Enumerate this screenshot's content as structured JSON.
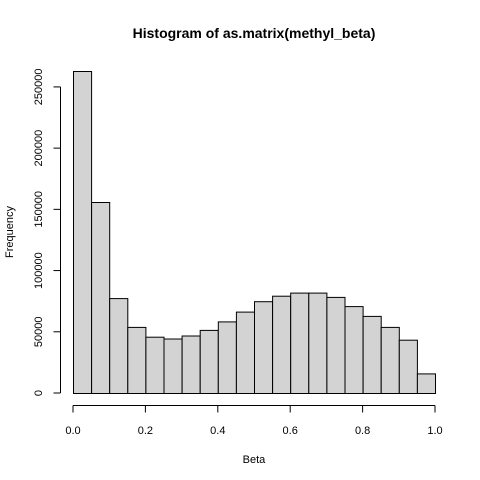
{
  "chart_data": {
    "type": "bar",
    "title": "Histogram of as.matrix(methyl_beta)",
    "xlabel": "Beta",
    "ylabel": "Frequency",
    "bin_edges": [
      0.0,
      0.05,
      0.1,
      0.15,
      0.2,
      0.25,
      0.3,
      0.35,
      0.4,
      0.45,
      0.5,
      0.55,
      0.6,
      0.65,
      0.7,
      0.75,
      0.8,
      0.85,
      0.9,
      0.95,
      1.0
    ],
    "values": [
      263000,
      156000,
      77500,
      54000,
      46000,
      44500,
      47000,
      51500,
      58500,
      66500,
      75000,
      79500,
      82000,
      82000,
      78500,
      71000,
      63000,
      54000,
      43500,
      16000
    ],
    "xlim": [
      0.0,
      1.0
    ],
    "ylim": [
      0,
      263000
    ],
    "x_ticks": [
      0.0,
      0.2,
      0.4,
      0.6,
      0.8,
      1.0
    ],
    "x_tick_labels": [
      "0.0",
      "0.2",
      "0.4",
      "0.6",
      "0.8",
      "1.0"
    ],
    "y_ticks": [
      0,
      50000,
      100000,
      150000,
      200000,
      250000
    ],
    "y_tick_labels": [
      "0",
      "50000",
      "100000",
      "150000",
      "200000",
      "250000"
    ],
    "grid": false,
    "colors": {
      "bar_fill": "#d3d3d3",
      "bar_stroke": "#000000"
    }
  }
}
